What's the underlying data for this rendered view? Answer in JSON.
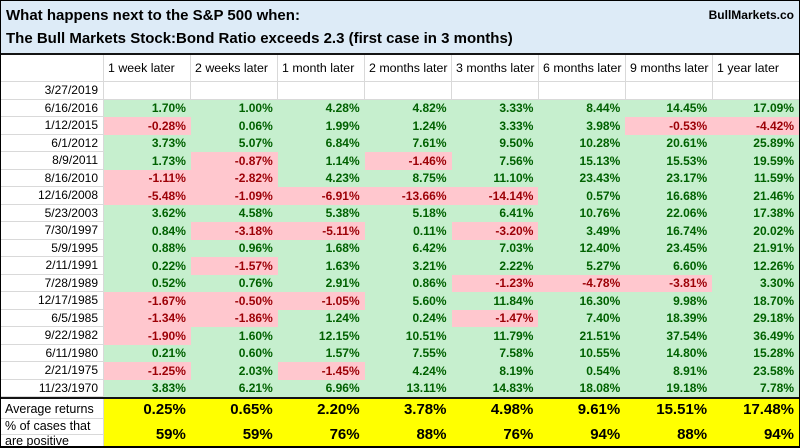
{
  "header": {
    "title_line1": "What happens next to the S&P 500 when:",
    "title_line2": "The Bull Markets Stock:Bond Ratio exceeds 2.3 (first case in 3 months)",
    "brand": "BullMarkets.co"
  },
  "table": {
    "columns": [
      "1 week later",
      "2 weeks later",
      "1 month later",
      "2 months later",
      "3 months later",
      "6 months later",
      "9 months later",
      "1 year later"
    ],
    "rows": [
      {
        "date": "3/27/2019",
        "values": []
      },
      {
        "date": "6/16/2016",
        "values": [
          "1.70%",
          "1.00%",
          "4.28%",
          "4.82%",
          "3.33%",
          "8.44%",
          "14.45%",
          "17.09%"
        ]
      },
      {
        "date": "1/12/2015",
        "values": [
          "-0.28%",
          "0.06%",
          "1.99%",
          "1.24%",
          "3.33%",
          "3.98%",
          "-0.53%",
          "-4.42%"
        ]
      },
      {
        "date": "6/1/2012",
        "values": [
          "3.73%",
          "5.07%",
          "6.84%",
          "7.61%",
          "9.50%",
          "10.28%",
          "20.61%",
          "25.89%"
        ]
      },
      {
        "date": "8/9/2011",
        "values": [
          "1.73%",
          "-0.87%",
          "1.14%",
          "-1.46%",
          "7.56%",
          "15.13%",
          "15.53%",
          "19.59%"
        ]
      },
      {
        "date": "8/16/2010",
        "values": [
          "-1.11%",
          "-2.82%",
          "4.23%",
          "8.75%",
          "11.10%",
          "23.43%",
          "23.17%",
          "11.59%"
        ]
      },
      {
        "date": "12/16/2008",
        "values": [
          "-5.48%",
          "-1.09%",
          "-6.91%",
          "-13.66%",
          "-14.14%",
          "0.57%",
          "16.68%",
          "21.46%"
        ]
      },
      {
        "date": "5/23/2003",
        "values": [
          "3.62%",
          "4.58%",
          "5.38%",
          "5.18%",
          "6.41%",
          "10.76%",
          "22.06%",
          "17.38%"
        ]
      },
      {
        "date": "7/30/1997",
        "values": [
          "0.84%",
          "-3.18%",
          "-5.11%",
          "0.11%",
          "-3.20%",
          "3.49%",
          "16.74%",
          "20.02%"
        ]
      },
      {
        "date": "5/9/1995",
        "values": [
          "0.88%",
          "0.96%",
          "1.68%",
          "6.42%",
          "7.03%",
          "12.40%",
          "23.45%",
          "21.91%"
        ]
      },
      {
        "date": "2/11/1991",
        "values": [
          "0.22%",
          "-1.57%",
          "1.63%",
          "3.21%",
          "2.22%",
          "5.27%",
          "6.60%",
          "12.26%"
        ]
      },
      {
        "date": "7/28/1989",
        "values": [
          "0.52%",
          "0.76%",
          "2.91%",
          "0.86%",
          "-1.23%",
          "-4.78%",
          "-3.81%",
          "3.30%"
        ]
      },
      {
        "date": "12/17/1985",
        "values": [
          "-1.67%",
          "-0.50%",
          "-1.05%",
          "5.60%",
          "11.84%",
          "16.30%",
          "9.98%",
          "18.70%"
        ]
      },
      {
        "date": "6/5/1985",
        "values": [
          "-1.34%",
          "-1.86%",
          "1.24%",
          "0.24%",
          "-1.47%",
          "7.40%",
          "18.39%",
          "29.18%"
        ]
      },
      {
        "date": "9/22/1982",
        "values": [
          "-1.90%",
          "1.60%",
          "12.15%",
          "10.51%",
          "11.79%",
          "21.51%",
          "37.54%",
          "36.49%"
        ]
      },
      {
        "date": "6/11/1980",
        "values": [
          "0.21%",
          "0.60%",
          "1.57%",
          "7.55%",
          "7.58%",
          "10.55%",
          "14.80%",
          "15.28%"
        ]
      },
      {
        "date": "2/21/1975",
        "values": [
          "-1.25%",
          "2.03%",
          "-1.45%",
          "4.24%",
          "8.19%",
          "0.54%",
          "8.91%",
          "23.58%"
        ]
      },
      {
        "date": "11/23/1970",
        "values": [
          "3.83%",
          "6.21%",
          "6.96%",
          "13.11%",
          "14.83%",
          "18.08%",
          "19.18%",
          "7.78%"
        ]
      }
    ],
    "summary": {
      "average_label": "Average returns",
      "average_values": [
        "0.25%",
        "0.65%",
        "2.20%",
        "3.78%",
        "4.98%",
        "9.61%",
        "15.51%",
        "17.48%"
      ],
      "percent_positive_label_line1": "% of cases that",
      "percent_positive_label_line2": "are positive",
      "percent_positive_values": [
        "59%",
        "59%",
        "76%",
        "88%",
        "76%",
        "94%",
        "88%",
        "94%"
      ]
    }
  },
  "colors": {
    "positive_fill": "#C6EFCE",
    "positive_text": "#006100",
    "negative_fill": "#FFC7CE",
    "negative_text": "#9C0006",
    "title_bg": "#DDEBF7",
    "summary_fill": "#FFFF00"
  }
}
